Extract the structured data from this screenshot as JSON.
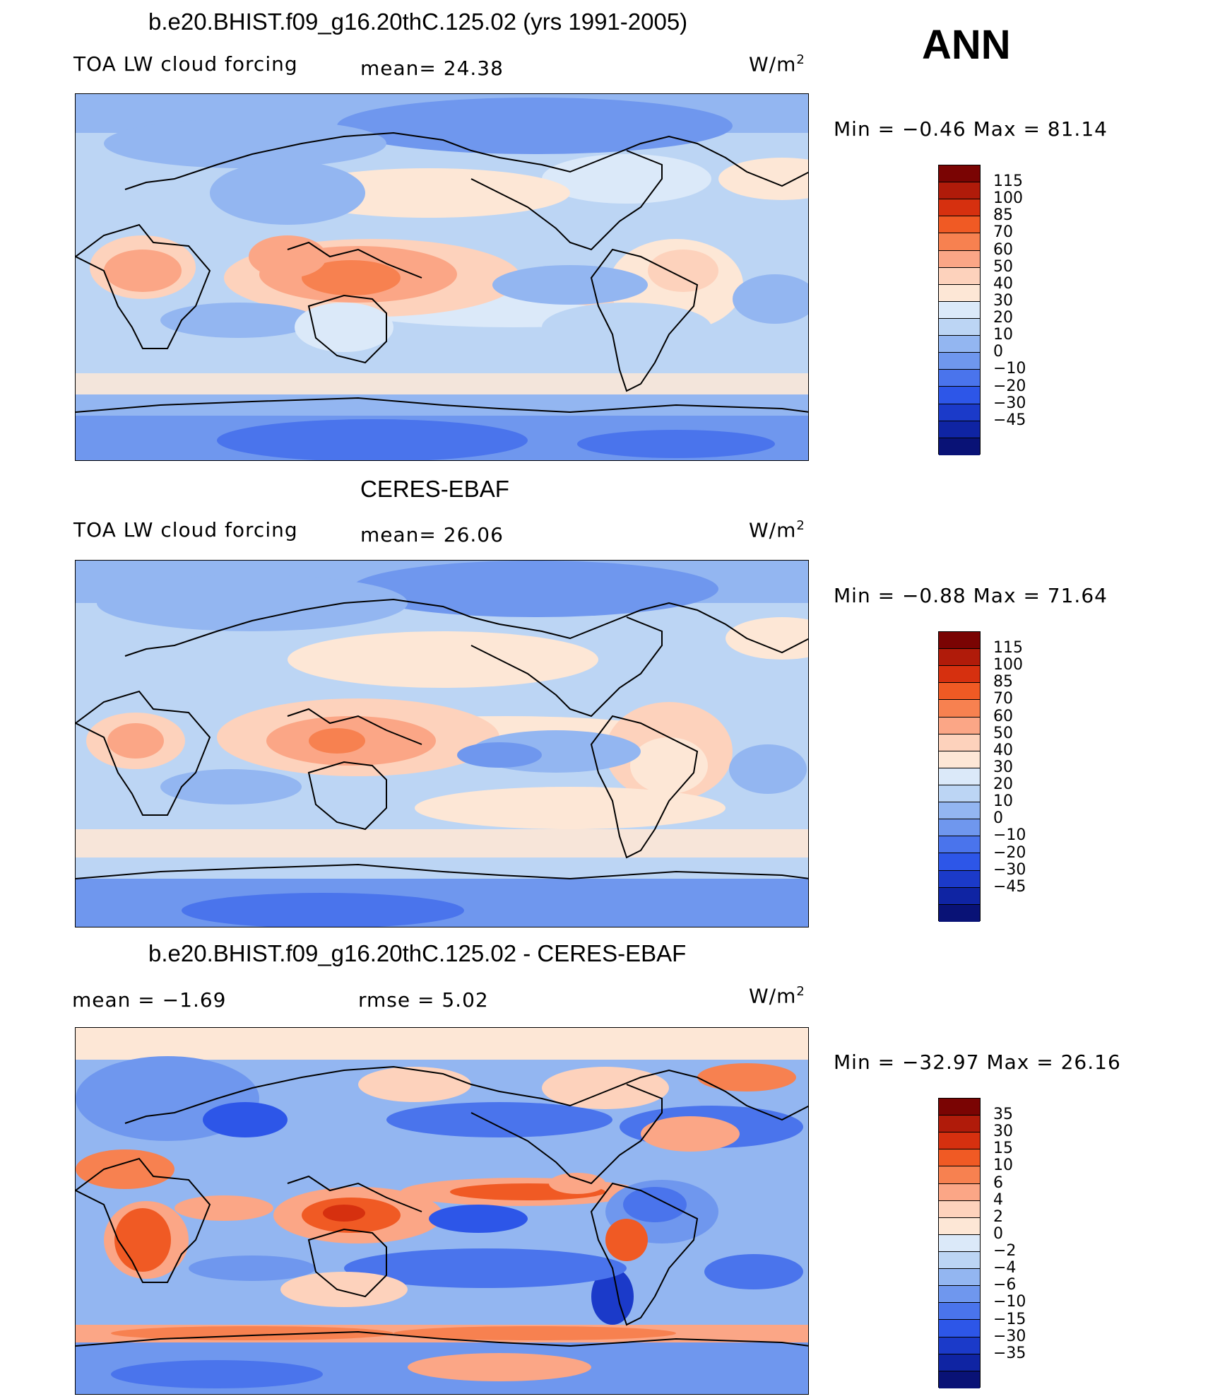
{
  "season": "ANN",
  "palettes": {
    "main": [
      "#7a0403",
      "#b01b0a",
      "#d6300f",
      "#f05a24",
      "#f78150",
      "#fba686",
      "#fdd2bc",
      "#fde7d6",
      "#dbe9f9",
      "#bcd5f4",
      "#93b6f1",
      "#6f97ee",
      "#4a74ec",
      "#2d56e8",
      "#1b3ac9",
      "#0f24a3",
      "#091276"
    ],
    "diff": [
      "#7a0403",
      "#b01b0a",
      "#d6300f",
      "#f05a24",
      "#f78150",
      "#fba686",
      "#fdd2bc",
      "#fde7d6",
      "#dbe9f9",
      "#bcd5f4",
      "#93b6f1",
      "#6f97ee",
      "#4a74ec",
      "#2d56e8",
      "#1b3ac9",
      "#0f24a3",
      "#091276"
    ]
  },
  "panels": [
    {
      "title": "b.e20.BHIST.f09_g16.20thC.125.02 (yrs 1991-2005)",
      "left_label": "TOA LW cloud forcing",
      "mid_label": "mean=  24.38",
      "units": "W/m",
      "units_sup": "2",
      "minmax": "Min =   −0.46  Max =   81.14",
      "ticks": [
        "115",
        "100",
        "85",
        "70",
        "60",
        "50",
        "40",
        "30",
        "20",
        "10",
        "0",
        "−10",
        "−20",
        "−30",
        "−45"
      ]
    },
    {
      "title": "CERES-EBAF",
      "left_label": "TOA LW cloud forcing",
      "mid_label": "mean=  26.06",
      "units": "W/m",
      "units_sup": "2",
      "minmax": "Min =   −0.88  Max =   71.64",
      "ticks": [
        "115",
        "100",
        "85",
        "70",
        "60",
        "50",
        "40",
        "30",
        "20",
        "10",
        "0",
        "−10",
        "−20",
        "−30",
        "−45"
      ]
    },
    {
      "title": "b.e20.BHIST.f09_g16.20thC.125.02 - CERES-EBAF",
      "left_label": "mean =   −1.69",
      "mid_label": "rmse =    5.02",
      "units": "W/m",
      "units_sup": "2",
      "minmax": "Min = −32.97  Max =   26.16",
      "ticks": [
        "35",
        "30",
        "15",
        "10",
        "6",
        "4",
        "2",
        "0",
        "−2",
        "−4",
        "−6",
        "−10",
        "−15",
        "−30",
        "−35"
      ]
    }
  ]
}
